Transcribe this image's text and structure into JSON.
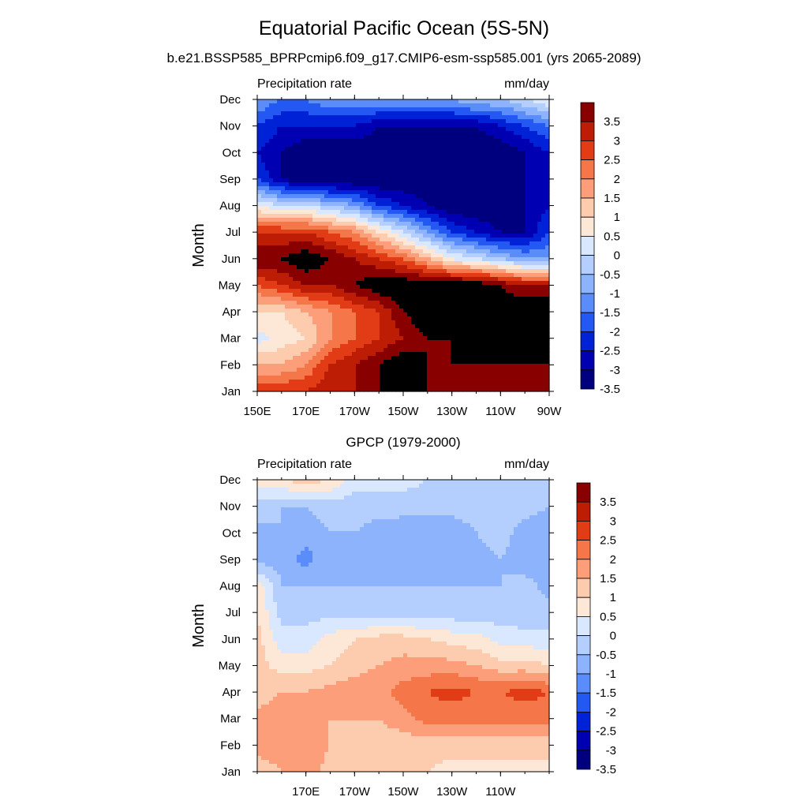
{
  "title": "Equatorial Pacific Ocean (5S-5N)",
  "subtitle": "b.e21.BSSP585_BPRPcmip6.f09_g17.CMIP6-esm-ssp585.001 (yrs 2065-2089)",
  "colors": [
    "#00007f",
    "#0000b2",
    "#0022d6",
    "#2358f2",
    "#5a8cfa",
    "#8cb3fc",
    "#b4cffd",
    "#d9e8fe",
    "#fde8d7",
    "#fdccaf",
    "#fc9e79",
    "#f57649",
    "#e23c16",
    "#bc1d04",
    "#890000"
  ],
  "chart_data": [
    {
      "type": "heatmap",
      "title": "",
      "left_label": "Precipitation rate",
      "right_label": "mm/day",
      "ylabel": "Month",
      "xlabel": "",
      "x_tick_labels": [
        "150E",
        "170E",
        "170W",
        "150W",
        "130W",
        "110W",
        "90W"
      ],
      "x_tick_values": [
        150,
        170,
        190,
        210,
        230,
        250,
        270
      ],
      "xlim": [
        150,
        270
      ],
      "y_tick_labels": [
        "Jan",
        "Feb",
        "Mar",
        "Apr",
        "May",
        "Jun",
        "Jul",
        "Aug",
        "Sep",
        "Oct",
        "Nov",
        "Dec"
      ],
      "y_tick_values": [
        1,
        2,
        3,
        4,
        5,
        6,
        7,
        8,
        9,
        10,
        11,
        12
      ],
      "ylim": [
        1,
        12
      ],
      "colorbar_labels": [
        "3.5",
        "3",
        "2.5",
        "2",
        "1.5",
        "1",
        "0.5",
        "0",
        "-0.5",
        "-1",
        "-1.5",
        "-2",
        "-2.5",
        "-3",
        "-3.5"
      ],
      "levels": [
        -3.5,
        -3,
        -2.5,
        -2,
        -1.5,
        -1,
        -0.5,
        0,
        0.5,
        1,
        1.5,
        2,
        2.5,
        3,
        3.5
      ],
      "lon": [
        150,
        160,
        170,
        180,
        190,
        200,
        210,
        220,
        230,
        240,
        250,
        260,
        270
      ],
      "values": [
        [
          2.5,
          2.5,
          2.5,
          3.0,
          3.0,
          3.5,
          3.5,
          3.5,
          3.5,
          3.5,
          3.5,
          3.5,
          3.5
        ],
        [
          1.0,
          1.0,
          1.5,
          2.5,
          3.0,
          3.5,
          4.0,
          3.5,
          3.5,
          3.5,
          3.5,
          3.5,
          3.5
        ],
        [
          -0.2,
          0.2,
          0.5,
          1.5,
          2.0,
          2.5,
          3.0,
          3.5,
          3.5,
          4.0,
          4.0,
          4.0,
          4.0
        ],
        [
          0.5,
          0.5,
          1.0,
          1.5,
          2.0,
          2.5,
          3.5,
          4.0,
          4.0,
          4.0,
          4.0,
          4.0,
          4.0
        ],
        [
          2.0,
          2.5,
          3.0,
          3.0,
          3.5,
          4.0,
          4.0,
          4.0,
          4.0,
          4.0,
          3.5,
          3.0,
          3.0
        ],
        [
          3.5,
          3.5,
          4.0,
          3.5,
          3.0,
          2.5,
          2.0,
          1.0,
          0.0,
          -0.5,
          -1.0,
          -1.5,
          -1.5
        ],
        [
          2.5,
          2.5,
          2.5,
          2.0,
          1.5,
          0.5,
          -0.5,
          -1.5,
          -2.5,
          -3.0,
          -3.5,
          -3.5,
          -2.5
        ],
        [
          0.0,
          -0.5,
          -0.5,
          -1.0,
          -1.5,
          -2.5,
          -3.0,
          -3.5,
          -4.0,
          -4.0,
          -4.0,
          -3.5,
          -3.0
        ],
        [
          -2.5,
          -3.5,
          -4.0,
          -4.0,
          -4.0,
          -4.0,
          -4.0,
          -4.0,
          -4.0,
          -4.0,
          -4.0,
          -3.5,
          -3.0
        ],
        [
          -3.0,
          -3.5,
          -4.0,
          -4.0,
          -4.0,
          -4.0,
          -4.0,
          -4.0,
          -4.0,
          -4.0,
          -4.0,
          -3.5,
          -3.0
        ],
        [
          -2.5,
          -3.0,
          -3.0,
          -3.0,
          -3.0,
          -3.5,
          -3.5,
          -3.5,
          -3.5,
          -3.5,
          -3.0,
          -2.5,
          -2.0
        ],
        [
          -1.5,
          -2.0,
          -2.0,
          -1.5,
          -1.5,
          -1.5,
          -1.5,
          -1.5,
          -1.5,
          -1.0,
          -1.0,
          -0.5,
          0.0
        ]
      ]
    },
    {
      "type": "heatmap",
      "title": "GPCP (1979-2000)",
      "left_label": "Precipitation rate",
      "right_label": "mm/day",
      "ylabel": "Month",
      "xlabel": "",
      "x_tick_labels": [
        "170E",
        "170W",
        "150W",
        "130W",
        "110W"
      ],
      "x_tick_values": [
        170,
        190,
        210,
        230,
        250
      ],
      "xlim": [
        150,
        270
      ],
      "y_tick_labels": [
        "Jan",
        "Feb",
        "Mar",
        "Apr",
        "May",
        "Jun",
        "Jul",
        "Aug",
        "Sep",
        "Oct",
        "Nov",
        "Dec"
      ],
      "y_tick_values": [
        1,
        2,
        3,
        4,
        5,
        6,
        7,
        8,
        9,
        10,
        11,
        12
      ],
      "ylim": [
        1,
        12
      ],
      "colorbar_labels": [
        "3.5",
        "3",
        "2.5",
        "2",
        "1.5",
        "1",
        "0.5",
        "0",
        "-0.5",
        "-1",
        "-1.5",
        "-2",
        "-2.5",
        "-3",
        "-3.5"
      ],
      "levels": [
        -3.5,
        -3,
        -2.5,
        -2,
        -1.5,
        -1,
        -0.5,
        0,
        0.5,
        1,
        1.5,
        2,
        2.5,
        3,
        3.5
      ],
      "lon": [
        150,
        160,
        170,
        180,
        190,
        200,
        210,
        220,
        230,
        240,
        250,
        260,
        270
      ],
      "values": [
        [
          0.7,
          1.0,
          1.3,
          0.8,
          0.5,
          0.5,
          0.5,
          0.5,
          0.3,
          0.3,
          0.3,
          0.3,
          0.3
        ],
        [
          1.2,
          1.3,
          1.2,
          1.0,
          0.7,
          0.7,
          0.7,
          0.7,
          0.7,
          0.7,
          0.7,
          0.7,
          0.7
        ],
        [
          1.2,
          1.3,
          1.2,
          1.0,
          1.0,
          1.0,
          1.3,
          1.7,
          1.7,
          1.7,
          1.7,
          1.7,
          1.7
        ],
        [
          0.7,
          1.0,
          1.0,
          1.2,
          1.3,
          1.3,
          1.7,
          2.0,
          2.2,
          2.0,
          2.0,
          2.2,
          2.0
        ],
        [
          0.7,
          0.3,
          0.3,
          0.5,
          0.8,
          1.0,
          1.2,
          1.2,
          1.2,
          1.0,
          0.7,
          0.7,
          0.5
        ],
        [
          0.7,
          -0.3,
          -0.3,
          0.2,
          0.5,
          0.7,
          0.7,
          0.5,
          0.3,
          0.2,
          -0.2,
          -0.3,
          -0.3
        ],
        [
          0.5,
          -0.7,
          -0.7,
          -0.7,
          -0.8,
          -0.8,
          -0.8,
          -0.8,
          -0.8,
          -0.8,
          -0.8,
          -0.8,
          -0.8
        ],
        [
          0.3,
          -1.0,
          -1.0,
          -1.0,
          -1.0,
          -1.0,
          -1.0,
          -1.0,
          -1.0,
          -1.0,
          -1.0,
          -0.8,
          -1.2
        ],
        [
          -1.2,
          -1.2,
          -1.7,
          -1.2,
          -1.0,
          -1.2,
          -1.3,
          -1.3,
          -1.3,
          -1.2,
          -1.0,
          -1.3,
          -1.3
        ],
        [
          -1.2,
          -1.0,
          -1.3,
          -1.0,
          -1.0,
          -1.2,
          -1.3,
          -1.3,
          -1.3,
          -1.0,
          -0.8,
          -1.2,
          -1.3
        ],
        [
          -0.7,
          -1.0,
          -1.0,
          -0.8,
          -0.8,
          -0.8,
          -0.8,
          -0.8,
          -0.8,
          -0.8,
          -0.8,
          -0.8,
          -1.0
        ],
        [
          0.2,
          0.5,
          0.8,
          0.5,
          -0.2,
          -0.3,
          -0.3,
          -0.5,
          -0.5,
          -0.5,
          -0.5,
          -0.5,
          -0.5
        ]
      ]
    }
  ]
}
